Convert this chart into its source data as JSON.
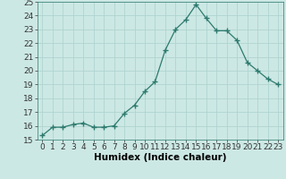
{
  "x": [
    0,
    1,
    2,
    3,
    4,
    5,
    6,
    7,
    8,
    9,
    10,
    11,
    12,
    13,
    14,
    15,
    16,
    17,
    18,
    19,
    20,
    21,
    22,
    23
  ],
  "y": [
    15.3,
    15.9,
    15.9,
    16.1,
    16.2,
    15.9,
    15.9,
    16.0,
    16.9,
    17.5,
    18.5,
    19.2,
    21.5,
    23.0,
    23.7,
    24.8,
    23.8,
    22.9,
    22.9,
    22.2,
    20.6,
    20.0,
    19.4,
    19.0
  ],
  "line_color": "#2d7a6e",
  "marker": "+",
  "marker_size": 4,
  "bg_color": "#cce8e4",
  "grid_color": "#b0d4d0",
  "xlabel": "Humidex (Indice chaleur)",
  "ylim": [
    15,
    25
  ],
  "xlim_min": -0.5,
  "xlim_max": 23.5,
  "yticks": [
    15,
    16,
    17,
    18,
    19,
    20,
    21,
    22,
    23,
    24,
    25
  ],
  "xticks": [
    0,
    1,
    2,
    3,
    4,
    5,
    6,
    7,
    8,
    9,
    10,
    11,
    12,
    13,
    14,
    15,
    16,
    17,
    18,
    19,
    20,
    21,
    22,
    23
  ],
  "tick_fontsize": 6.5,
  "xlabel_fontsize": 7.5
}
